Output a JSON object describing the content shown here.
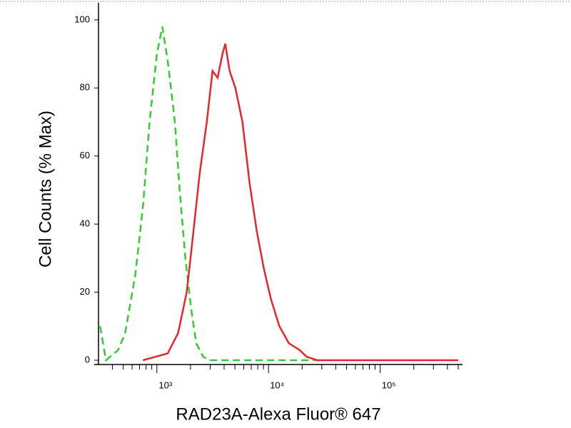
{
  "chart_data": {
    "type": "line",
    "xlabel": "RAD23A-Alexa Fluor® 647",
    "ylabel": "Cell Counts (% Max)",
    "xscale": "log",
    "xlim": [
      300,
      500000
    ],
    "ylim": [
      0,
      105
    ],
    "xticks": [
      {
        "value": 1000,
        "label": "10³"
      },
      {
        "value": 10000,
        "label": "10⁴"
      },
      {
        "value": 100000,
        "label": "10⁵"
      }
    ],
    "xminorticks": [
      400,
      500,
      600,
      700,
      800,
      900,
      2000,
      3000,
      4000,
      5000,
      6000,
      7000,
      8000,
      9000,
      20000,
      30000,
      40000,
      50000,
      60000,
      70000,
      80000,
      90000,
      200000,
      300000,
      400000,
      500000
    ],
    "yticks": [
      0,
      20,
      40,
      60,
      80,
      100
    ],
    "series": [
      {
        "color": "#33cc33",
        "dashed": true,
        "x": [
          310,
          350,
          450,
          520,
          640,
          750,
          860,
          1000,
          1120,
          1250,
          1450,
          1600,
          1800,
          2030,
          2250,
          2600,
          3000,
          30000
        ],
        "values": [
          10,
          0,
          3,
          8,
          25,
          45,
          70,
          90,
          98,
          88,
          70,
          50,
          30,
          15,
          5,
          1,
          0,
          0
        ]
      },
      {
        "color": "#e8262a",
        "dashed": false,
        "x": [
          750,
          1250,
          1550,
          1850,
          2080,
          2420,
          2800,
          3150,
          3500,
          3870,
          4100,
          4480,
          5050,
          5840,
          6770,
          7840,
          9070,
          10500,
          12500,
          15200,
          19000,
          22000,
          27300,
          500000
        ],
        "values": [
          0,
          2,
          8,
          20,
          35,
          55,
          70,
          85,
          83,
          90,
          93,
          85,
          80,
          70,
          52,
          38,
          27,
          18,
          10,
          5,
          3,
          1,
          0,
          0
        ]
      }
    ]
  }
}
